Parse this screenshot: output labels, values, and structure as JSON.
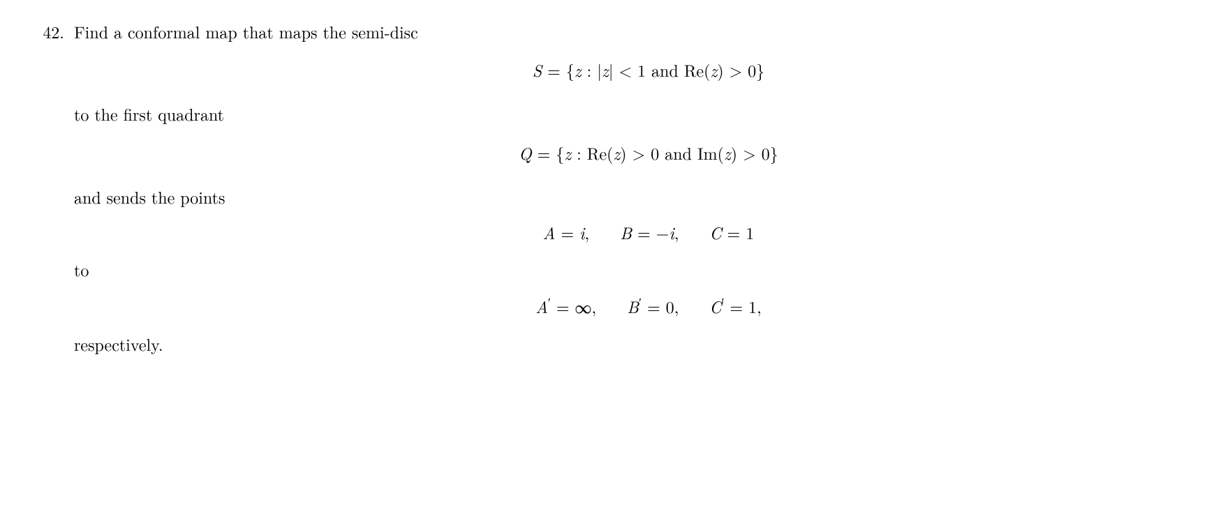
{
  "problem": {
    "number": "42.",
    "line1": "Find a conformal map that maps the semi-disc",
    "eq_S": "S = {z : |z| < 1 and Re(z) > 0}",
    "line2": "to the first quadrant",
    "eq_Q": "Q = {z : Re(z) > 0 and Im(z) > 0}",
    "line3": "and sends the points",
    "eq_ABC": {
      "A": "A = i,",
      "B": "B = −i,",
      "C": "C = 1"
    },
    "line4": "to",
    "eq_ABCp": {
      "A": "A′ = ∞,",
      "B": "B′ = 0,",
      "C": "C′ = 1,"
    },
    "line5": "respectively."
  }
}
